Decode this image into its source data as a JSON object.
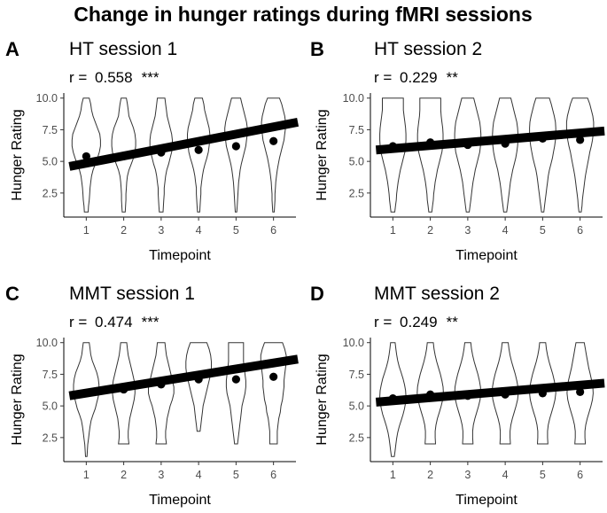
{
  "figure_title": "Change in hunger ratings during fMRI sessions",
  "chart_data": [
    {
      "type": "violin",
      "letter": "A",
      "title": "HT session 1",
      "stat_label": "r = ",
      "r": "0.558",
      "stars": "***",
      "xlabel": "Timepoint",
      "ylabel": "Hunger Rating",
      "categories": [
        "1",
        "2",
        "3",
        "4",
        "5",
        "6"
      ],
      "ylim": [
        0.6,
        10.4
      ],
      "yticks": [
        "2.5",
        "5.0",
        "7.5",
        "10.0"
      ],
      "means": [
        5.4,
        5.4,
        5.7,
        5.9,
        6.2,
        6.6
      ],
      "regression": {
        "x_start": 0.55,
        "x_end": 6.65,
        "y_start": 4.6,
        "y_end": 8.1
      },
      "violins": [
        {
          "min": 1,
          "max": 10,
          "widths": [
            0.05,
            0.06,
            0.08,
            0.09,
            0.1,
            0.12,
            0.14,
            0.18,
            0.24,
            0.3,
            0.35,
            0.38,
            0.38,
            0.36,
            0.3,
            0.24,
            0.18,
            0.14,
            0.12,
            0.08
          ]
        },
        {
          "min": 1,
          "max": 10,
          "widths": [
            0.04,
            0.05,
            0.06,
            0.06,
            0.07,
            0.08,
            0.1,
            0.14,
            0.2,
            0.26,
            0.3,
            0.32,
            0.32,
            0.3,
            0.26,
            0.2,
            0.14,
            0.12,
            0.1,
            0.07
          ]
        },
        {
          "min": 1,
          "max": 10,
          "widths": [
            0.05,
            0.06,
            0.07,
            0.08,
            0.08,
            0.1,
            0.12,
            0.15,
            0.2,
            0.24,
            0.28,
            0.3,
            0.3,
            0.28,
            0.24,
            0.2,
            0.16,
            0.14,
            0.12,
            0.1
          ]
        },
        {
          "min": 1,
          "max": 10,
          "widths": [
            0.03,
            0.04,
            0.05,
            0.06,
            0.06,
            0.08,
            0.1,
            0.13,
            0.17,
            0.22,
            0.26,
            0.28,
            0.3,
            0.3,
            0.28,
            0.24,
            0.2,
            0.16,
            0.14,
            0.1
          ]
        },
        {
          "min": 1,
          "max": 10,
          "widths": [
            0.02,
            0.03,
            0.04,
            0.05,
            0.06,
            0.07,
            0.09,
            0.11,
            0.14,
            0.18,
            0.22,
            0.26,
            0.28,
            0.3,
            0.3,
            0.28,
            0.24,
            0.2,
            0.16,
            0.12
          ]
        },
        {
          "min": 1,
          "max": 10,
          "widths": [
            0.02,
            0.03,
            0.04,
            0.04,
            0.05,
            0.06,
            0.08,
            0.1,
            0.13,
            0.16,
            0.2,
            0.24,
            0.28,
            0.3,
            0.32,
            0.32,
            0.3,
            0.26,
            0.22,
            0.16
          ]
        }
      ]
    },
    {
      "type": "violin",
      "letter": "B",
      "title": "HT session 2",
      "stat_label": "r = ",
      "r": "0.229",
      "stars": "**",
      "xlabel": "Timepoint",
      "ylabel": "Hunger Rating",
      "categories": [
        "1",
        "2",
        "3",
        "4",
        "5",
        "6"
      ],
      "ylim": [
        0.6,
        10.4
      ],
      "yticks": [
        "2.5",
        "5.0",
        "7.5",
        "10.0"
      ],
      "means": [
        6.2,
        6.5,
        6.3,
        6.4,
        6.8,
        6.7
      ],
      "regression": {
        "x_start": 0.55,
        "x_end": 6.65,
        "y_start": 5.9,
        "y_end": 7.4
      },
      "violins": [
        {
          "min": 1,
          "max": 10,
          "widths": [
            0.05,
            0.07,
            0.09,
            0.1,
            0.12,
            0.14,
            0.17,
            0.2,
            0.24,
            0.28,
            0.32,
            0.34,
            0.35,
            0.35,
            0.34,
            0.32,
            0.3,
            0.28,
            0.28,
            0.28
          ]
        },
        {
          "min": 1,
          "max": 10,
          "widths": [
            0.04,
            0.06,
            0.08,
            0.09,
            0.11,
            0.13,
            0.16,
            0.19,
            0.23,
            0.27,
            0.31,
            0.33,
            0.34,
            0.34,
            0.33,
            0.31,
            0.29,
            0.28,
            0.28,
            0.28
          ]
        },
        {
          "min": 1,
          "max": 10,
          "widths": [
            0.04,
            0.06,
            0.08,
            0.1,
            0.12,
            0.14,
            0.17,
            0.2,
            0.24,
            0.28,
            0.32,
            0.34,
            0.35,
            0.35,
            0.34,
            0.32,
            0.28,
            0.24,
            0.2,
            0.16
          ]
        },
        {
          "min": 1,
          "max": 10,
          "widths": [
            0.04,
            0.06,
            0.08,
            0.1,
            0.12,
            0.14,
            0.17,
            0.2,
            0.24,
            0.28,
            0.31,
            0.33,
            0.34,
            0.34,
            0.33,
            0.31,
            0.27,
            0.23,
            0.19,
            0.15
          ]
        },
        {
          "min": 1,
          "max": 10,
          "widths": [
            0.03,
            0.05,
            0.07,
            0.09,
            0.11,
            0.13,
            0.15,
            0.18,
            0.22,
            0.26,
            0.29,
            0.32,
            0.34,
            0.35,
            0.35,
            0.34,
            0.31,
            0.27,
            0.23,
            0.18
          ]
        },
        {
          "min": 1,
          "max": 10,
          "widths": [
            0.03,
            0.05,
            0.06,
            0.08,
            0.1,
            0.12,
            0.14,
            0.17,
            0.2,
            0.23,
            0.26,
            0.3,
            0.33,
            0.35,
            0.36,
            0.36,
            0.34,
            0.3,
            0.26,
            0.2
          ]
        }
      ]
    },
    {
      "type": "violin",
      "letter": "C",
      "title": "MMT session 1",
      "stat_label": "r = ",
      "r": "0.474",
      "stars": "***",
      "xlabel": "Timepoint",
      "ylabel": "Hunger Rating",
      "categories": [
        "1",
        "2",
        "3",
        "4",
        "5",
        "6"
      ],
      "ylim": [
        0.6,
        10.4
      ],
      "yticks": [
        "2.5",
        "5.0",
        "7.5",
        "10.0"
      ],
      "means": [
        6.0,
        6.3,
        6.7,
        7.1,
        7.1,
        7.3
      ],
      "regression": {
        "x_start": 0.55,
        "x_end": 6.65,
        "y_start": 5.8,
        "y_end": 8.7
      },
      "violins": [
        {
          "min": 1,
          "max": 10,
          "widths": [
            0.02,
            0.03,
            0.04,
            0.06,
            0.08,
            0.1,
            0.13,
            0.18,
            0.24,
            0.28,
            0.32,
            0.34,
            0.34,
            0.32,
            0.28,
            0.22,
            0.16,
            0.12,
            0.1,
            0.08
          ]
        },
        {
          "min": 2,
          "max": 10,
          "widths": [
            0.14,
            0.12,
            0.12,
            0.14,
            0.16,
            0.2,
            0.24,
            0.28,
            0.3,
            0.3,
            0.28,
            0.24,
            0.2,
            0.16,
            0.12,
            0.1,
            0.08
          ]
        },
        {
          "min": 2,
          "max": 10,
          "widths": [
            0.14,
            0.12,
            0.12,
            0.14,
            0.16,
            0.2,
            0.24,
            0.3,
            0.34,
            0.34,
            0.3,
            0.26,
            0.22,
            0.18,
            0.14,
            0.12,
            0.1
          ]
        },
        {
          "min": 3,
          "max": 10,
          "widths": [
            0.04,
            0.06,
            0.08,
            0.1,
            0.12,
            0.16,
            0.2,
            0.24,
            0.28,
            0.32,
            0.34,
            0.34,
            0.32,
            0.28,
            0.22
          ]
        },
        {
          "min": 2,
          "max": 10,
          "widths": [
            0.04,
            0.06,
            0.08,
            0.1,
            0.12,
            0.14,
            0.16,
            0.2,
            0.24,
            0.26,
            0.26,
            0.24,
            0.22,
            0.2,
            0.2,
            0.2,
            0.2
          ]
        },
        {
          "min": 2,
          "max": 10,
          "widths": [
            0.1,
            0.1,
            0.1,
            0.12,
            0.14,
            0.18,
            0.2,
            0.24,
            0.26,
            0.28,
            0.28,
            0.3,
            0.32,
            0.34,
            0.34,
            0.3,
            0.24
          ]
        }
      ]
    },
    {
      "type": "violin",
      "letter": "D",
      "title": "MMT session 2",
      "stat_label": "r = ",
      "r": "0.249",
      "stars": "**",
      "xlabel": "Timepoint",
      "ylabel": "Hunger Rating",
      "categories": [
        "1",
        "2",
        "3",
        "4",
        "5",
        "6"
      ],
      "ylim": [
        0.6,
        10.4
      ],
      "yticks": [
        "2.5",
        "5.0",
        "7.5",
        "10.0"
      ],
      "means": [
        5.6,
        5.9,
        5.8,
        5.9,
        6.0,
        6.1
      ],
      "regression": {
        "x_start": 0.55,
        "x_end": 6.65,
        "y_start": 5.3,
        "y_end": 6.8
      },
      "violins": [
        {
          "min": 1,
          "max": 10,
          "widths": [
            0.04,
            0.06,
            0.08,
            0.1,
            0.13,
            0.17,
            0.22,
            0.27,
            0.31,
            0.34,
            0.35,
            0.34,
            0.31,
            0.27,
            0.22,
            0.17,
            0.13,
            0.1,
            0.08,
            0.06
          ]
        },
        {
          "min": 2,
          "max": 10,
          "widths": [
            0.14,
            0.13,
            0.13,
            0.15,
            0.19,
            0.24,
            0.29,
            0.33,
            0.35,
            0.34,
            0.31,
            0.27,
            0.22,
            0.17,
            0.13,
            0.1,
            0.08
          ]
        },
        {
          "min": 2,
          "max": 10,
          "widths": [
            0.14,
            0.13,
            0.13,
            0.15,
            0.19,
            0.24,
            0.29,
            0.33,
            0.35,
            0.34,
            0.31,
            0.27,
            0.22,
            0.17,
            0.13,
            0.1,
            0.08
          ]
        },
        {
          "min": 2,
          "max": 10,
          "widths": [
            0.14,
            0.13,
            0.13,
            0.15,
            0.19,
            0.24,
            0.29,
            0.33,
            0.35,
            0.34,
            0.31,
            0.27,
            0.22,
            0.17,
            0.13,
            0.1,
            0.08
          ]
        },
        {
          "min": 2,
          "max": 10,
          "widths": [
            0.14,
            0.13,
            0.13,
            0.15,
            0.19,
            0.24,
            0.29,
            0.33,
            0.35,
            0.34,
            0.31,
            0.27,
            0.22,
            0.17,
            0.13,
            0.1,
            0.08
          ]
        },
        {
          "min": 2,
          "max": 10,
          "widths": [
            0.14,
            0.13,
            0.13,
            0.15,
            0.19,
            0.24,
            0.29,
            0.33,
            0.35,
            0.34,
            0.31,
            0.27,
            0.23,
            0.2,
            0.17,
            0.14,
            0.11
          ]
        }
      ]
    }
  ]
}
